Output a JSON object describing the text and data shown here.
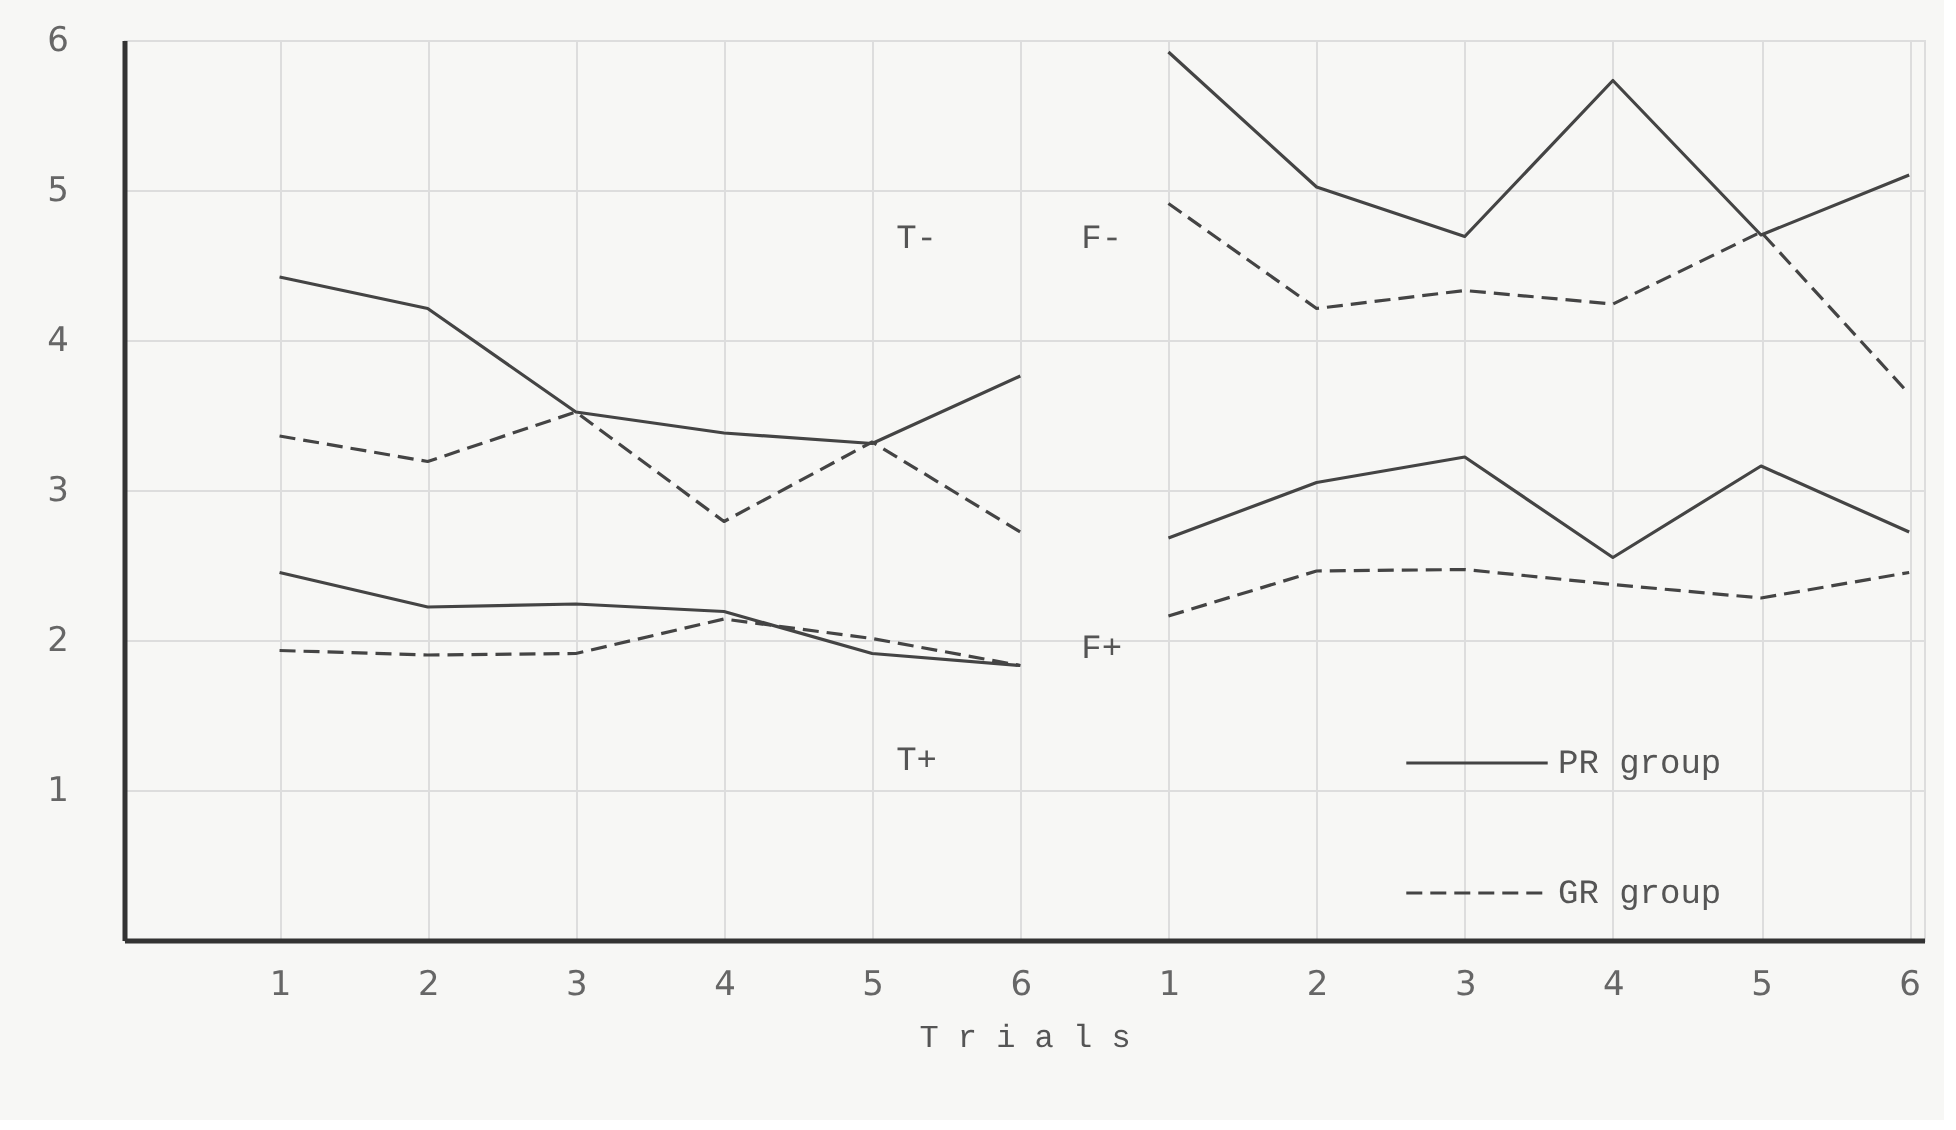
{
  "chart_data": {
    "type": "line",
    "xlabel": "T r i a l s",
    "categories": [
      "1",
      "2",
      "3",
      "4",
      "5",
      "6",
      "1",
      "2",
      "3",
      "4",
      "5",
      "6"
    ],
    "ylim": [
      0,
      6
    ],
    "yticks": [
      1,
      2,
      3,
      4,
      5,
      6
    ],
    "grid": true,
    "legend": "bottom right",
    "marker": "none",
    "annotations": [
      "T-",
      "T+",
      "F-",
      "F+"
    ],
    "series": [
      {
        "name": "PR group",
        "color": "#444444",
        "line_style": "solid",
        "values": [
          4.42,
          4.21,
          3.52,
          3.38,
          3.31,
          3.76,
          null,
          null,
          null,
          null,
          null,
          null
        ]
      },
      {
        "name": "GR group",
        "color": "#444444",
        "line_style": "dashed",
        "values": [
          3.36,
          3.19,
          3.52,
          2.79,
          3.32,
          2.72,
          null,
          null,
          null,
          null,
          null,
          null
        ]
      },
      {
        "color": "#444444",
        "line_style": "solid",
        "values": [
          2.45,
          2.22,
          2.24,
          2.19,
          1.91,
          1.83,
          null,
          null,
          null,
          null,
          null,
          null
        ]
      },
      {
        "color": "#444444",
        "line_style": "dashed",
        "values": [
          1.93,
          1.9,
          1.91,
          2.14,
          2.01,
          1.83,
          null,
          null,
          null,
          null,
          null,
          null
        ]
      },
      {
        "color": "#444444",
        "line_style": "solid",
        "values": [
          null,
          null,
          null,
          null,
          null,
          null,
          5.92,
          5.02,
          4.69,
          5.73,
          4.7,
          5.1
        ]
      },
      {
        "color": "#444444",
        "line_style": "dashed",
        "values": [
          null,
          null,
          null,
          null,
          null,
          null,
          4.91,
          4.21,
          4.33,
          4.24,
          4.72,
          3.64
        ]
      },
      {
        "color": "#444444",
        "line_style": "solid",
        "values": [
          null,
          null,
          null,
          null,
          null,
          null,
          2.68,
          3.05,
          3.22,
          2.55,
          3.16,
          2.72
        ]
      },
      {
        "color": "#444444",
        "line_style": "dashed",
        "values": [
          null,
          null,
          null,
          null,
          null,
          null,
          2.16,
          2.46,
          2.47,
          2.37,
          2.28,
          2.45
        ]
      }
    ]
  }
}
